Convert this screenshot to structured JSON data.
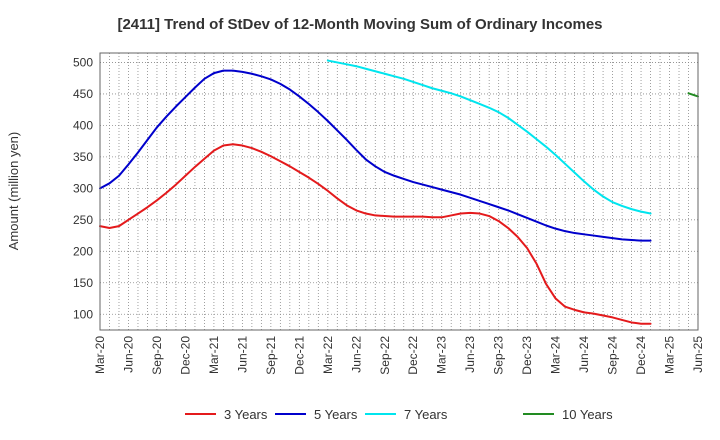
{
  "chart_data": {
    "type": "line",
    "title": "[2411]  Trend of StDev of 12-Month Moving Sum of Ordinary Incomes",
    "xlabel": "",
    "ylabel": "Amount (million yen)",
    "ylim": [
      75,
      515
    ],
    "y_ticks": [
      100,
      150,
      200,
      250,
      300,
      350,
      400,
      450,
      500
    ],
    "x_tick_labels": [
      "Mar-20",
      "Jun-20",
      "Sep-20",
      "Dec-20",
      "Mar-21",
      "Jun-21",
      "Sep-21",
      "Dec-21",
      "Mar-22",
      "Jun-22",
      "Sep-22",
      "Dec-22",
      "Mar-23",
      "Jun-23",
      "Sep-23",
      "Dec-23",
      "Mar-24",
      "Jun-24",
      "Sep-24",
      "Dec-24",
      "Mar-25",
      "Jun-25"
    ],
    "grid": true,
    "legend_position": "bottom",
    "series": [
      {
        "name": "3 Years",
        "color": "#e41a1c",
        "start_index": 0,
        "values": [
          240,
          237,
          240,
          250,
          260,
          270,
          281,
          293,
          306,
          320,
          334,
          347,
          360,
          368,
          370,
          368,
          364,
          358,
          351,
          343,
          335,
          326,
          317,
          307,
          296,
          284,
          273,
          265,
          260,
          257,
          256,
          255,
          255,
          255,
          255,
          254,
          254,
          257,
          260,
          261,
          260,
          256,
          248,
          237,
          223,
          205,
          180,
          148,
          125,
          112,
          107,
          103,
          101,
          98,
          95,
          91,
          87,
          85,
          85
        ]
      },
      {
        "name": "5 Years",
        "color": "#0000cc",
        "start_index": 0,
        "values": [
          300,
          308,
          320,
          338,
          357,
          377,
          397,
          414,
          430,
          445,
          460,
          474,
          483,
          487,
          487,
          485,
          482,
          478,
          473,
          466,
          457,
          446,
          434,
          421,
          407,
          392,
          377,
          361,
          346,
          335,
          326,
          320,
          315,
          310,
          306,
          302,
          298,
          294,
          290,
          285,
          280,
          275,
          270,
          265,
          259,
          253,
          247,
          241,
          236,
          232,
          229,
          227,
          225,
          223,
          221,
          219,
          218,
          217,
          217
        ]
      },
      {
        "name": "7 Years",
        "color": "#00e5ee",
        "start_index": 24,
        "values": [
          503,
          500,
          497,
          494,
          490,
          486,
          482,
          478,
          474,
          469,
          464,
          459,
          455,
          451,
          446,
          440,
          434,
          428,
          421,
          412,
          401,
          390,
          378,
          366,
          353,
          339,
          325,
          311,
          298,
          287,
          278,
          272,
          267,
          263,
          260
        ]
      },
      {
        "name": "10 Years",
        "color": "#228b22",
        "start_index": 62,
        "values": [
          451,
          446
        ]
      }
    ]
  }
}
